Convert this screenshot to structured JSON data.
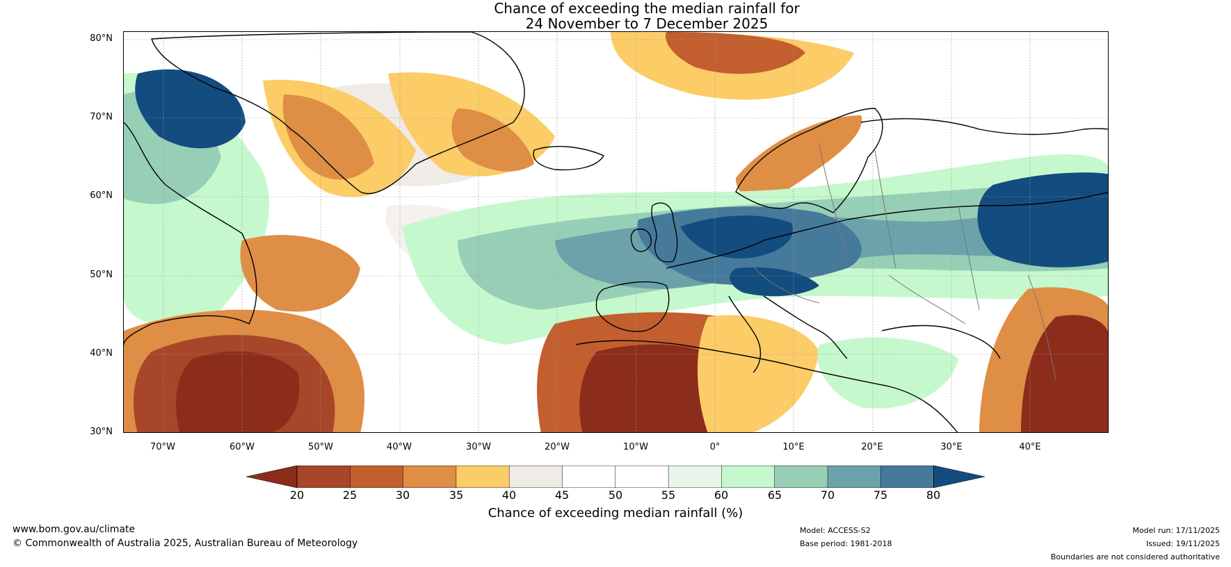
{
  "title": {
    "line1": "Chance of exceeding the median rainfall for",
    "line2": "24 November to 7 December 2025"
  },
  "map": {
    "lat_labels": [
      "80°N",
      "70°N",
      "60°N",
      "50°N",
      "40°N",
      "30°N"
    ],
    "lon_labels": [
      "70°W",
      "60°W",
      "50°W",
      "40°W",
      "30°W",
      "20°W",
      "10°W",
      "0°",
      "10°E",
      "20°E",
      "30°E",
      "40°E"
    ],
    "extent": {
      "lon_min": -75,
      "lon_max": 50,
      "lat_min": 30,
      "lat_max": 81
    }
  },
  "colorbar": {
    "ticks": [
      "20",
      "25",
      "30",
      "35",
      "40",
      "45",
      "50",
      "55",
      "60",
      "65",
      "70",
      "75",
      "80"
    ],
    "colors": [
      "#8c2d1c",
      "#a8462a",
      "#c35e2f",
      "#df8e45",
      "#fccc67",
      "#efebe7",
      "#ffffff",
      "#ffffff",
      "#e8f6e9",
      "#c6f8cd",
      "#97cfb6",
      "#6ca3aa",
      "#467a9b",
      "#134c7f"
    ],
    "label": "Chance of exceeding median rainfall (%)"
  },
  "footer": {
    "url": "www.bom.gov.au/climate",
    "copyright": "© Commonwealth of Australia 2025, Australian Bureau of Meteorology",
    "model": "Model: ACCESS-S2",
    "base_period": "Base period: 1981-2018",
    "model_run": "Model run: 17/11/2025",
    "issued": "Issued: 19/11/2025",
    "disclaimer": "Boundaries are not considered authoritative"
  }
}
